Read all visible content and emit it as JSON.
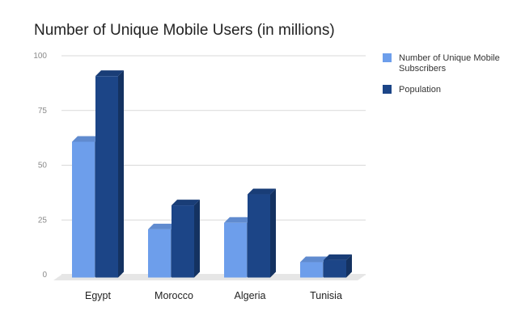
{
  "chart_data": {
    "type": "bar",
    "title": "Number of Unique Mobile Users (in millions)",
    "categories": [
      "Egypt",
      "Morocco",
      "Algeria",
      "Tunisia"
    ],
    "series": [
      {
        "name": "Number of Unique Mobile Subscribers",
        "values": [
          62,
          22,
          25,
          7
        ]
      },
      {
        "name": "Population",
        "values": [
          92,
          33,
          38,
          8
        ]
      }
    ],
    "ylim": [
      0,
      100
    ],
    "yticks": [
      "0",
      "25",
      "50",
      "75",
      "100"
    ],
    "grid": true,
    "legend_position": "right",
    "colors": [
      "#6d9eeb",
      "#1c4587"
    ]
  }
}
